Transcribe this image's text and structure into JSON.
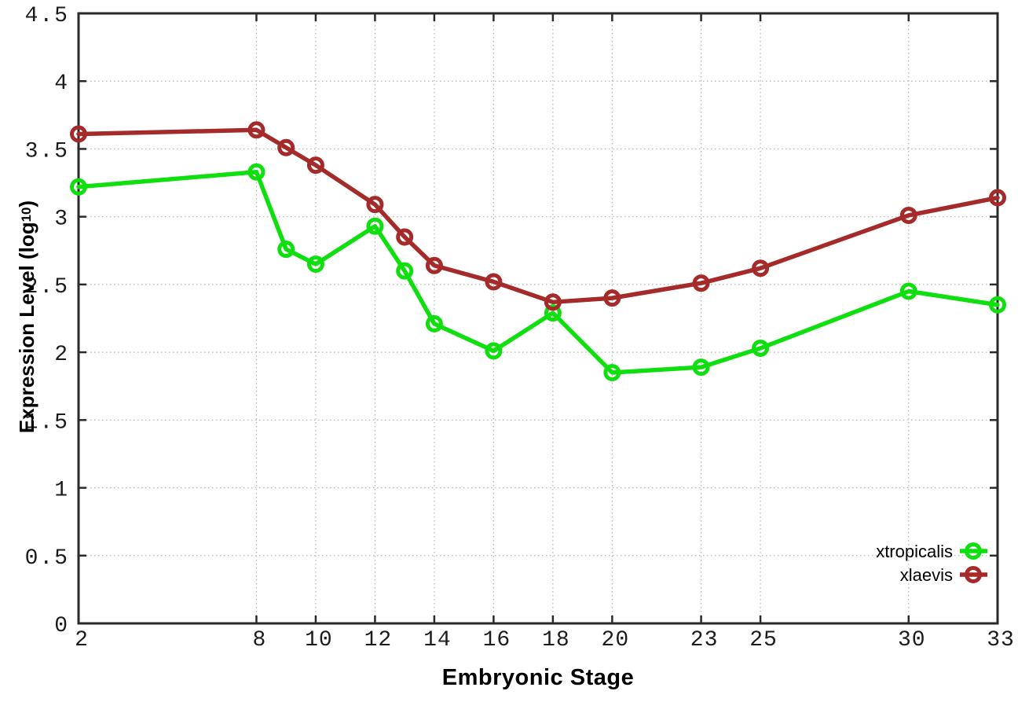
{
  "chart_data": {
    "type": "line",
    "title": "",
    "xlabel": "Embryonic Stage",
    "ylabel": "Expression Level (log10)",
    "ylabel_parts": {
      "main": "Expression Level (log",
      "sub": "10",
      "suffix": ")"
    },
    "x": [
      2,
      8,
      9,
      10,
      12,
      13,
      14,
      16,
      18,
      20,
      23,
      25,
      30,
      33
    ],
    "series": [
      {
        "name": "xtropicalis",
        "color": "#0fdf0f",
        "values": [
          3.22,
          3.33,
          2.76,
          2.65,
          2.93,
          2.6,
          2.21,
          2.01,
          2.29,
          1.85,
          1.89,
          2.03,
          2.45,
          2.35
        ]
      },
      {
        "name": "xlaevis",
        "color": "#a52a2a",
        "values": [
          3.61,
          3.64,
          3.51,
          3.38,
          3.09,
          2.85,
          2.64,
          2.52,
          2.37,
          2.4,
          2.51,
          2.62,
          3.01,
          3.14
        ]
      }
    ],
    "x_ticks": [
      2,
      8,
      10,
      12,
      14,
      16,
      18,
      20,
      23,
      25,
      30,
      33
    ],
    "x_tick_labels": [
      "2",
      "8",
      "10",
      "12",
      "14",
      "16",
      "18",
      "20",
      "23",
      "25",
      "30",
      "33"
    ],
    "y_ticks": [
      0,
      0.5,
      1,
      1.5,
      2,
      2.5,
      3,
      3.5,
      4,
      4.5
    ],
    "y_tick_labels": [
      "0",
      "0.5",
      "1",
      "1.5",
      "2",
      "2.5",
      "3",
      "3.5",
      "4",
      "4.5"
    ],
    "xlim": [
      2,
      33
    ],
    "ylim": [
      0,
      4.5
    ],
    "grid": true,
    "legend_position": "bottom-right",
    "legend_entries": [
      "xtropicalis",
      "xlaevis"
    ],
    "marker": "open-circle",
    "colors": {
      "grid": "#b4b4b4",
      "axis": "#2a2a2a",
      "tick_text": "#1c1c1c",
      "legend_text": "#000000"
    }
  }
}
